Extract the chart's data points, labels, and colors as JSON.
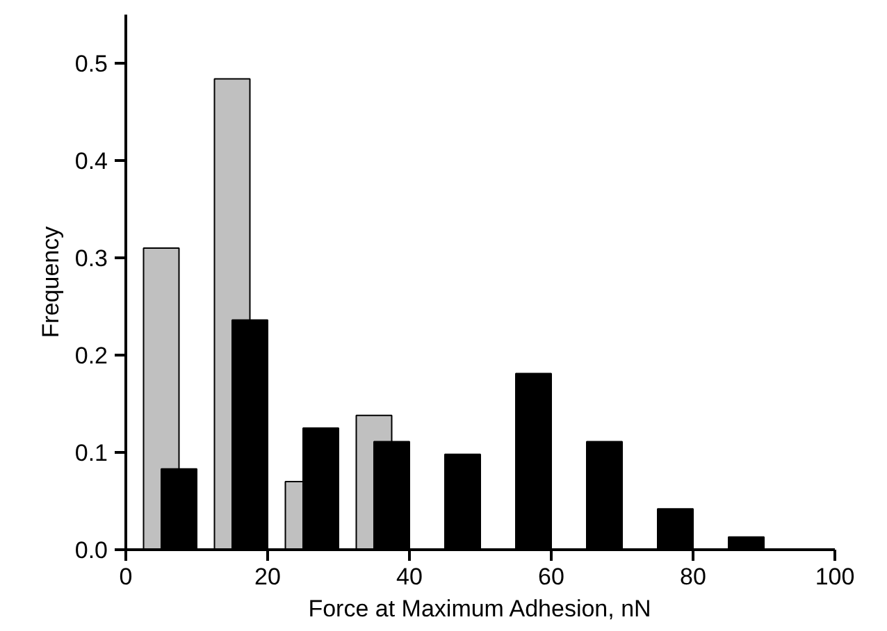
{
  "chart_data": {
    "type": "histogram",
    "xlabel": "Force at Maximum Adhesion, nN",
    "ylabel": "Frequency",
    "bins": [
      0,
      10,
      20,
      30,
      40,
      50,
      60,
      70,
      80,
      90
    ],
    "series": [
      {
        "color": "#c0c0c0",
        "values": [
          0.31,
          0.484,
          0.07,
          0.138,
          null,
          null,
          null,
          null,
          null
        ]
      },
      {
        "color": "#000000",
        "values": [
          0.083,
          0.236,
          0.125,
          0.111,
          0.098,
          0.181,
          0.111,
          0.042,
          0.013
        ]
      }
    ],
    "xlim": [
      0,
      100
    ],
    "ylim": [
      0,
      0.55
    ],
    "xticks": [
      0,
      20,
      40,
      60,
      80,
      100
    ],
    "yticks": [
      {
        "value": 0,
        "label": "0.0"
      },
      0.1,
      0.2,
      0.3,
      0.4,
      0.5
    ],
    "grid": false
  }
}
